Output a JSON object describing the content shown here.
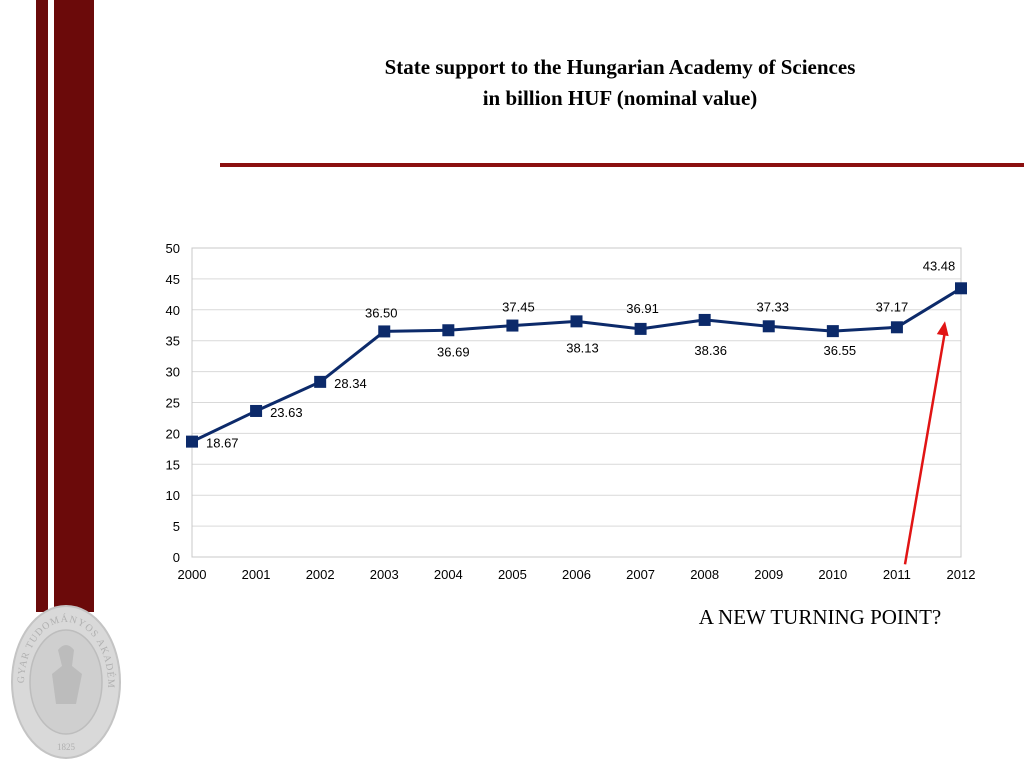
{
  "title_line1": "State support to the Hungarian Academy of Sciences",
  "title_line2": "in billion HUF (nominal value)",
  "callout": "A NEW TURNING POINT?",
  "seal": {
    "text": "MAGYAR TUDOMÁNYOS AKADÉMIA",
    "year": "1825"
  },
  "colors": {
    "accent": "#6b0a0a",
    "series": "#0c2a6a",
    "arrow": "#e11414"
  },
  "chart_data": {
    "type": "line",
    "title": "State support to the Hungarian Academy of Sciences in billion HUF (nominal value)",
    "x": [
      "2000",
      "2001",
      "2002",
      "2003",
      "2004",
      "2005",
      "2006",
      "2007",
      "2008",
      "2009",
      "2010",
      "2011",
      "2012"
    ],
    "y": [
      18.67,
      23.63,
      28.34,
      36.5,
      36.69,
      37.45,
      38.13,
      36.91,
      38.36,
      37.33,
      36.55,
      37.17,
      43.48
    ],
    "labels": [
      "18.67",
      "23.63",
      "28.34",
      "36.50",
      "36.69",
      "37.45",
      "38.13",
      "36.91",
      "38.36",
      "37.33",
      "36.55",
      "37.17",
      "43.48"
    ],
    "ylim": [
      0,
      50
    ],
    "yticks": [
      0,
      5,
      10,
      15,
      20,
      25,
      30,
      35,
      40,
      45,
      50
    ],
    "grid": true,
    "legend": "none",
    "annotation": {
      "text": "A NEW TURNING POINT?",
      "points_to": "2012"
    }
  }
}
